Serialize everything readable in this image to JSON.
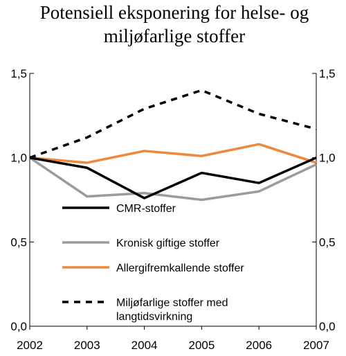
{
  "chart_data": {
    "type": "line",
    "title_lines": [
      "Potensiell eksponering for helse- og",
      "miljøfarlige stoffer"
    ],
    "x": [
      "2002",
      "2003",
      "2004",
      "2005",
      "2006",
      "2007"
    ],
    "ylim": [
      0,
      1.5
    ],
    "y_ticks": [
      "0,0",
      "0,5",
      "1,0",
      "1,5"
    ],
    "y_tick_values": [
      0,
      0.5,
      1.0,
      1.5
    ],
    "grid": false,
    "legend_position": "bottom-left inside plot",
    "series": [
      {
        "name": "CMR-stoffer",
        "values": [
          1.0,
          0.94,
          0.76,
          0.91,
          0.85,
          1.0
        ],
        "color": "#000000",
        "style": "solid"
      },
      {
        "name": "Kronisk giftige stoffer",
        "values": [
          1.0,
          0.77,
          0.79,
          0.75,
          0.8,
          0.96
        ],
        "color": "#9b9b9b",
        "style": "solid"
      },
      {
        "name": "Allergifremkallende stoffer",
        "values": [
          1.0,
          0.97,
          1.04,
          1.01,
          1.08,
          0.97
        ],
        "color": "#f0883a",
        "style": "solid"
      },
      {
        "name_lines": [
          "Miljøfarlige stoffer med",
          "langtidsvirkning"
        ],
        "values": [
          1.0,
          1.12,
          1.29,
          1.4,
          1.26,
          1.17
        ],
        "color": "#000000",
        "style": "dashed"
      }
    ]
  }
}
